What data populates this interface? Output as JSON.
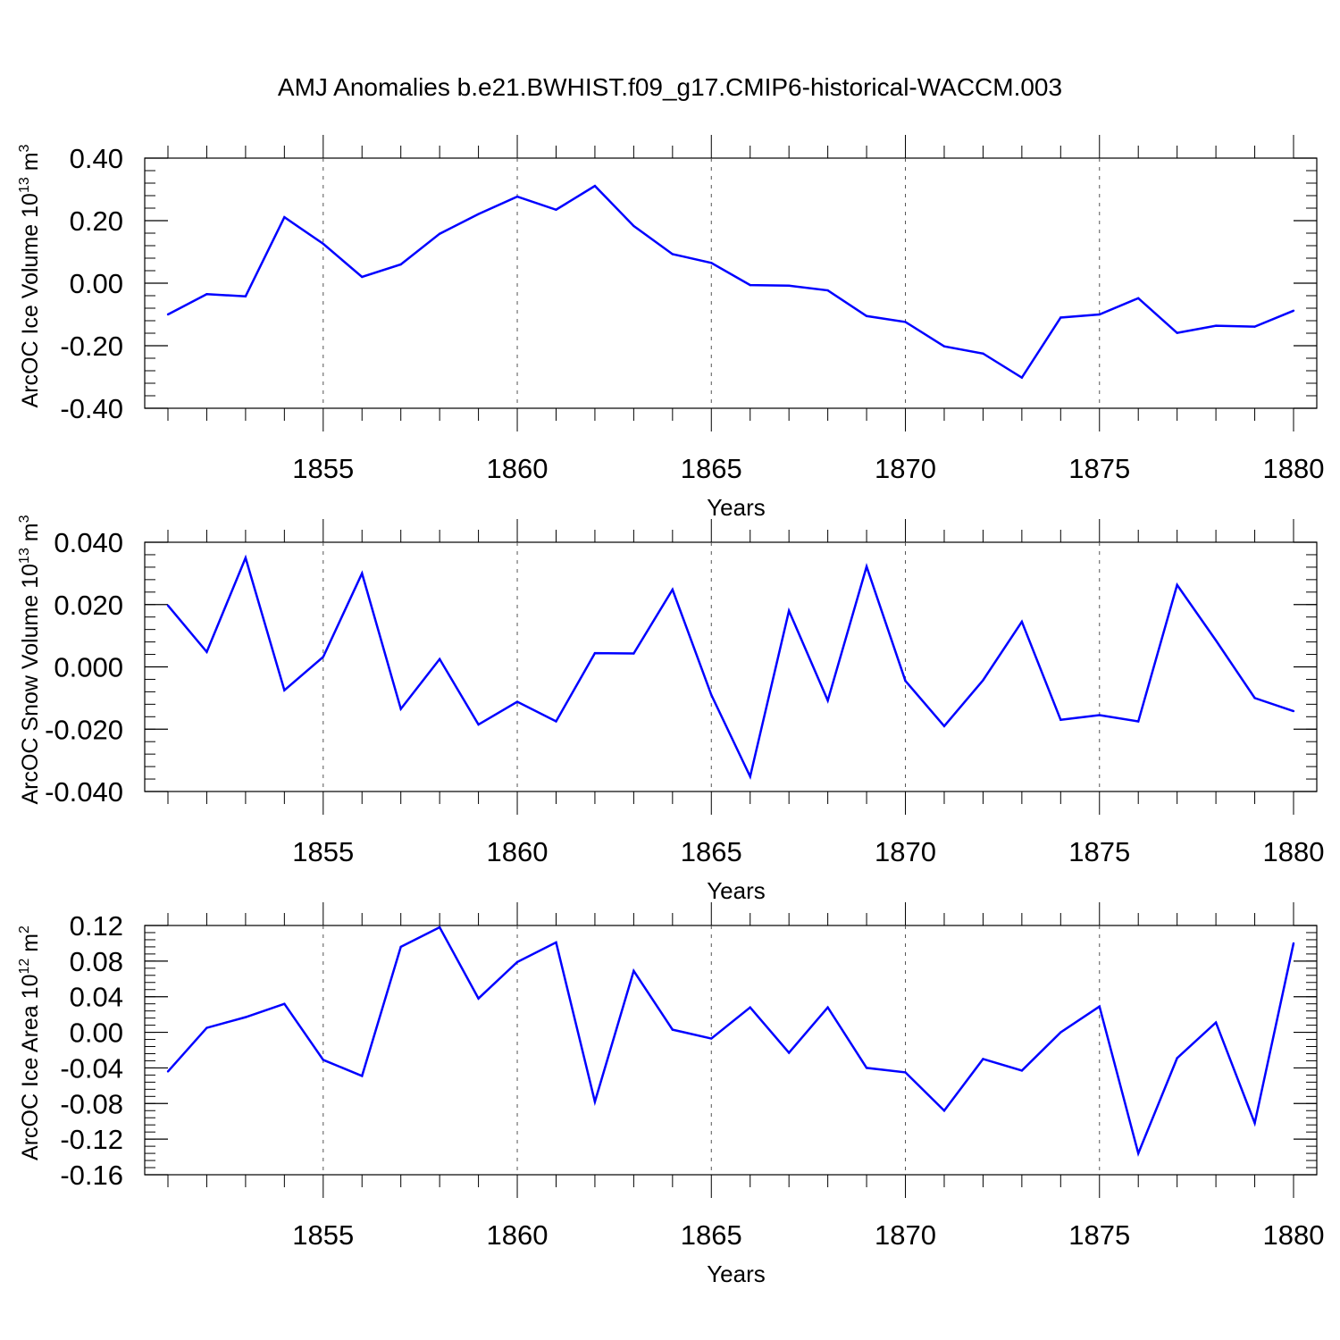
{
  "title": "AMJ Anomalies b.e21.BWHIST.f09_g17.CMIP6-historical-WACCM.003",
  "line_color": "#0000ff",
  "chart_data": [
    {
      "type": "line",
      "name": "ice-volume",
      "xlabel": "Years",
      "ylabel": "ArcOC Ice Volume",
      "ylabel_unit_base": "10",
      "ylabel_unit_exp": "13",
      "ylabel_unit": "m",
      "ylabel_unit_pow": "3",
      "xlim": [
        1851,
        1880
      ],
      "ylim": [
        -0.4,
        0.4
      ],
      "xticks": [
        1855,
        1860,
        1865,
        1870,
        1875,
        1880
      ],
      "xtick_labels": [
        "1855",
        "1860",
        "1865",
        "1870",
        "1875",
        "1880"
      ],
      "yticks": [
        0.4,
        0.2,
        0.0,
        -0.2,
        -0.4
      ],
      "ytick_labels": [
        "0.40",
        "0.20",
        "0.00",
        "-0.20",
        "-0.40"
      ],
      "yminor_step": 0.04,
      "x": [
        1851,
        1852,
        1853,
        1854,
        1855,
        1856,
        1857,
        1858,
        1859,
        1860,
        1861,
        1862,
        1863,
        1864,
        1865,
        1866,
        1867,
        1868,
        1869,
        1870,
        1871,
        1872,
        1873,
        1874,
        1875,
        1876,
        1877,
        1878,
        1879,
        1880
      ],
      "values": [
        -0.1,
        -0.035,
        -0.042,
        0.211,
        0.126,
        0.02,
        0.06,
        0.158,
        0.221,
        0.277,
        0.235,
        0.311,
        0.183,
        0.093,
        0.065,
        -0.006,
        -0.008,
        -0.023,
        -0.105,
        -0.124,
        -0.202,
        -0.225,
        -0.302,
        -0.11,
        -0.1,
        -0.048,
        -0.159,
        -0.136,
        -0.139,
        -0.088
      ]
    },
    {
      "type": "line",
      "name": "snow-volume",
      "xlabel": "Years",
      "ylabel": "ArcOC Snow Volume",
      "ylabel_unit_base": "10",
      "ylabel_unit_exp": "13",
      "ylabel_unit": "m",
      "ylabel_unit_pow": "3",
      "xlim": [
        1851,
        1880
      ],
      "ylim": [
        -0.04,
        0.04
      ],
      "xticks": [
        1855,
        1860,
        1865,
        1870,
        1875,
        1880
      ],
      "xtick_labels": [
        "1855",
        "1860",
        "1865",
        "1870",
        "1875",
        "1880"
      ],
      "yticks": [
        0.04,
        0.02,
        0.0,
        -0.02,
        -0.04
      ],
      "ytick_labels": [
        "0.040",
        "0.020",
        "0.000",
        "-0.020",
        "-0.040"
      ],
      "yminor_step": 0.004,
      "x": [
        1851,
        1852,
        1853,
        1854,
        1855,
        1856,
        1857,
        1858,
        1859,
        1860,
        1861,
        1862,
        1863,
        1864,
        1865,
        1866,
        1867,
        1868,
        1869,
        1870,
        1871,
        1872,
        1873,
        1874,
        1875,
        1876,
        1877,
        1878,
        1879,
        1880
      ],
      "values": [
        0.0197,
        0.0048,
        0.035,
        -0.0075,
        0.0032,
        0.03,
        -0.0135,
        0.0025,
        -0.0185,
        -0.0112,
        -0.0175,
        0.0044,
        0.0043,
        0.0248,
        -0.009,
        -0.0352,
        0.018,
        -0.0108,
        0.0322,
        -0.0045,
        -0.019,
        -0.0043,
        0.0145,
        -0.017,
        -0.0155,
        -0.0175,
        0.0263,
        0.0085,
        -0.01,
        -0.0142
      ]
    },
    {
      "type": "line",
      "name": "ice-area",
      "xlabel": "Years",
      "ylabel": "ArcOC Ice Area",
      "ylabel_unit_base": "10",
      "ylabel_unit_exp": "12",
      "ylabel_unit": "m",
      "ylabel_unit_pow": "2",
      "xlim": [
        1851,
        1880
      ],
      "ylim": [
        -0.16,
        0.12
      ],
      "xticks": [
        1855,
        1860,
        1865,
        1870,
        1875,
        1880
      ],
      "xtick_labels": [
        "1855",
        "1860",
        "1865",
        "1870",
        "1875",
        "1880"
      ],
      "yticks": [
        0.12,
        0.08,
        0.04,
        0.0,
        -0.04,
        -0.08,
        -0.12,
        -0.16
      ],
      "ytick_labels": [
        "0.12",
        "0.08",
        "0.04",
        "0.00",
        "-0.04",
        "-0.08",
        "-0.12",
        "-0.16"
      ],
      "yminor_step": 0.008,
      "x": [
        1851,
        1852,
        1853,
        1854,
        1855,
        1856,
        1857,
        1858,
        1859,
        1860,
        1861,
        1862,
        1863,
        1864,
        1865,
        1866,
        1867,
        1868,
        1869,
        1870,
        1871,
        1872,
        1873,
        1874,
        1875,
        1876,
        1877,
        1878,
        1879,
        1880
      ],
      "values": [
        -0.044,
        0.005,
        0.017,
        0.032,
        -0.031,
        -0.049,
        0.096,
        0.118,
        0.038,
        0.079,
        0.101,
        -0.078,
        0.069,
        0.003,
        -0.007,
        0.028,
        -0.023,
        0.028,
        -0.04,
        -0.045,
        -0.088,
        -0.03,
        -0.043,
        0.0,
        0.029,
        -0.136,
        -0.029,
        0.011,
        -0.102,
        0.1
      ]
    }
  ]
}
